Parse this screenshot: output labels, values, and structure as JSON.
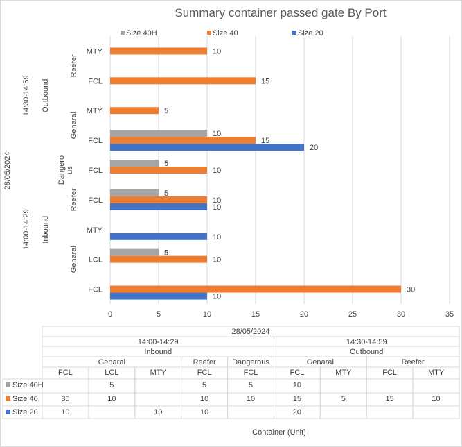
{
  "chart_data": {
    "type": "bar",
    "orientation": "horizontal",
    "title": "Summary container passed gate By Port",
    "xlabel": "Container (Unit)",
    "xlim": [
      0,
      35
    ],
    "x_ticks": [
      0,
      5,
      10,
      15,
      20,
      25,
      30,
      35
    ],
    "grid": true,
    "legend_position": "top",
    "series": [
      {
        "name": "Size 40H",
        "color": "#a5a5a5",
        "values": [
          null,
          5,
          null,
          5,
          5,
          10,
          null,
          null,
          null
        ]
      },
      {
        "name": "Size 40",
        "color": "#ed7d31",
        "values": [
          30,
          10,
          null,
          10,
          10,
          15,
          5,
          15,
          10
        ]
      },
      {
        "name": "Size 20",
        "color": "#4472c4",
        "values": [
          10,
          null,
          10,
          10,
          null,
          20,
          null,
          null,
          null
        ]
      }
    ],
    "categories": [
      {
        "date": "28/05/2024",
        "time": "14:00-14:29",
        "direction": "Inbound",
        "group": "Genaral",
        "type": "FCL"
      },
      {
        "date": "28/05/2024",
        "time": "14:00-14:29",
        "direction": "Inbound",
        "group": "Genaral",
        "type": "LCL"
      },
      {
        "date": "28/05/2024",
        "time": "14:00-14:29",
        "direction": "Inbound",
        "group": "Genaral",
        "type": "MTY"
      },
      {
        "date": "28/05/2024",
        "time": "14:00-14:29",
        "direction": "Inbound",
        "group": "Reefer",
        "type": "FCL"
      },
      {
        "date": "28/05/2024",
        "time": "14:00-14:29",
        "direction": "Inbound",
        "group": "Dangerous",
        "type": "FCL"
      },
      {
        "date": "28/05/2024",
        "time": "14:30-14:59",
        "direction": "Outbound",
        "group": "Genaral",
        "type": "FCL"
      },
      {
        "date": "28/05/2024",
        "time": "14:30-14:59",
        "direction": "Outbound",
        "group": "Genaral",
        "type": "MTY"
      },
      {
        "date": "28/05/2024",
        "time": "14:30-14:59",
        "direction": "Outbound",
        "group": "Reefer",
        "type": "FCL"
      },
      {
        "date": "28/05/2024",
        "time": "14:30-14:59",
        "direction": "Outbound",
        "group": "Reefer",
        "type": "MTY"
      }
    ],
    "axis_group_labels": {
      "date": "28/05/2024",
      "times": [
        "14:00-14:29",
        "14:30-14:59"
      ],
      "directions": [
        "Inbound",
        "Outbound"
      ],
      "groups": [
        "Genaral",
        "Reefer",
        "Dangero us",
        "Genaral",
        "Reefer"
      ]
    }
  }
}
